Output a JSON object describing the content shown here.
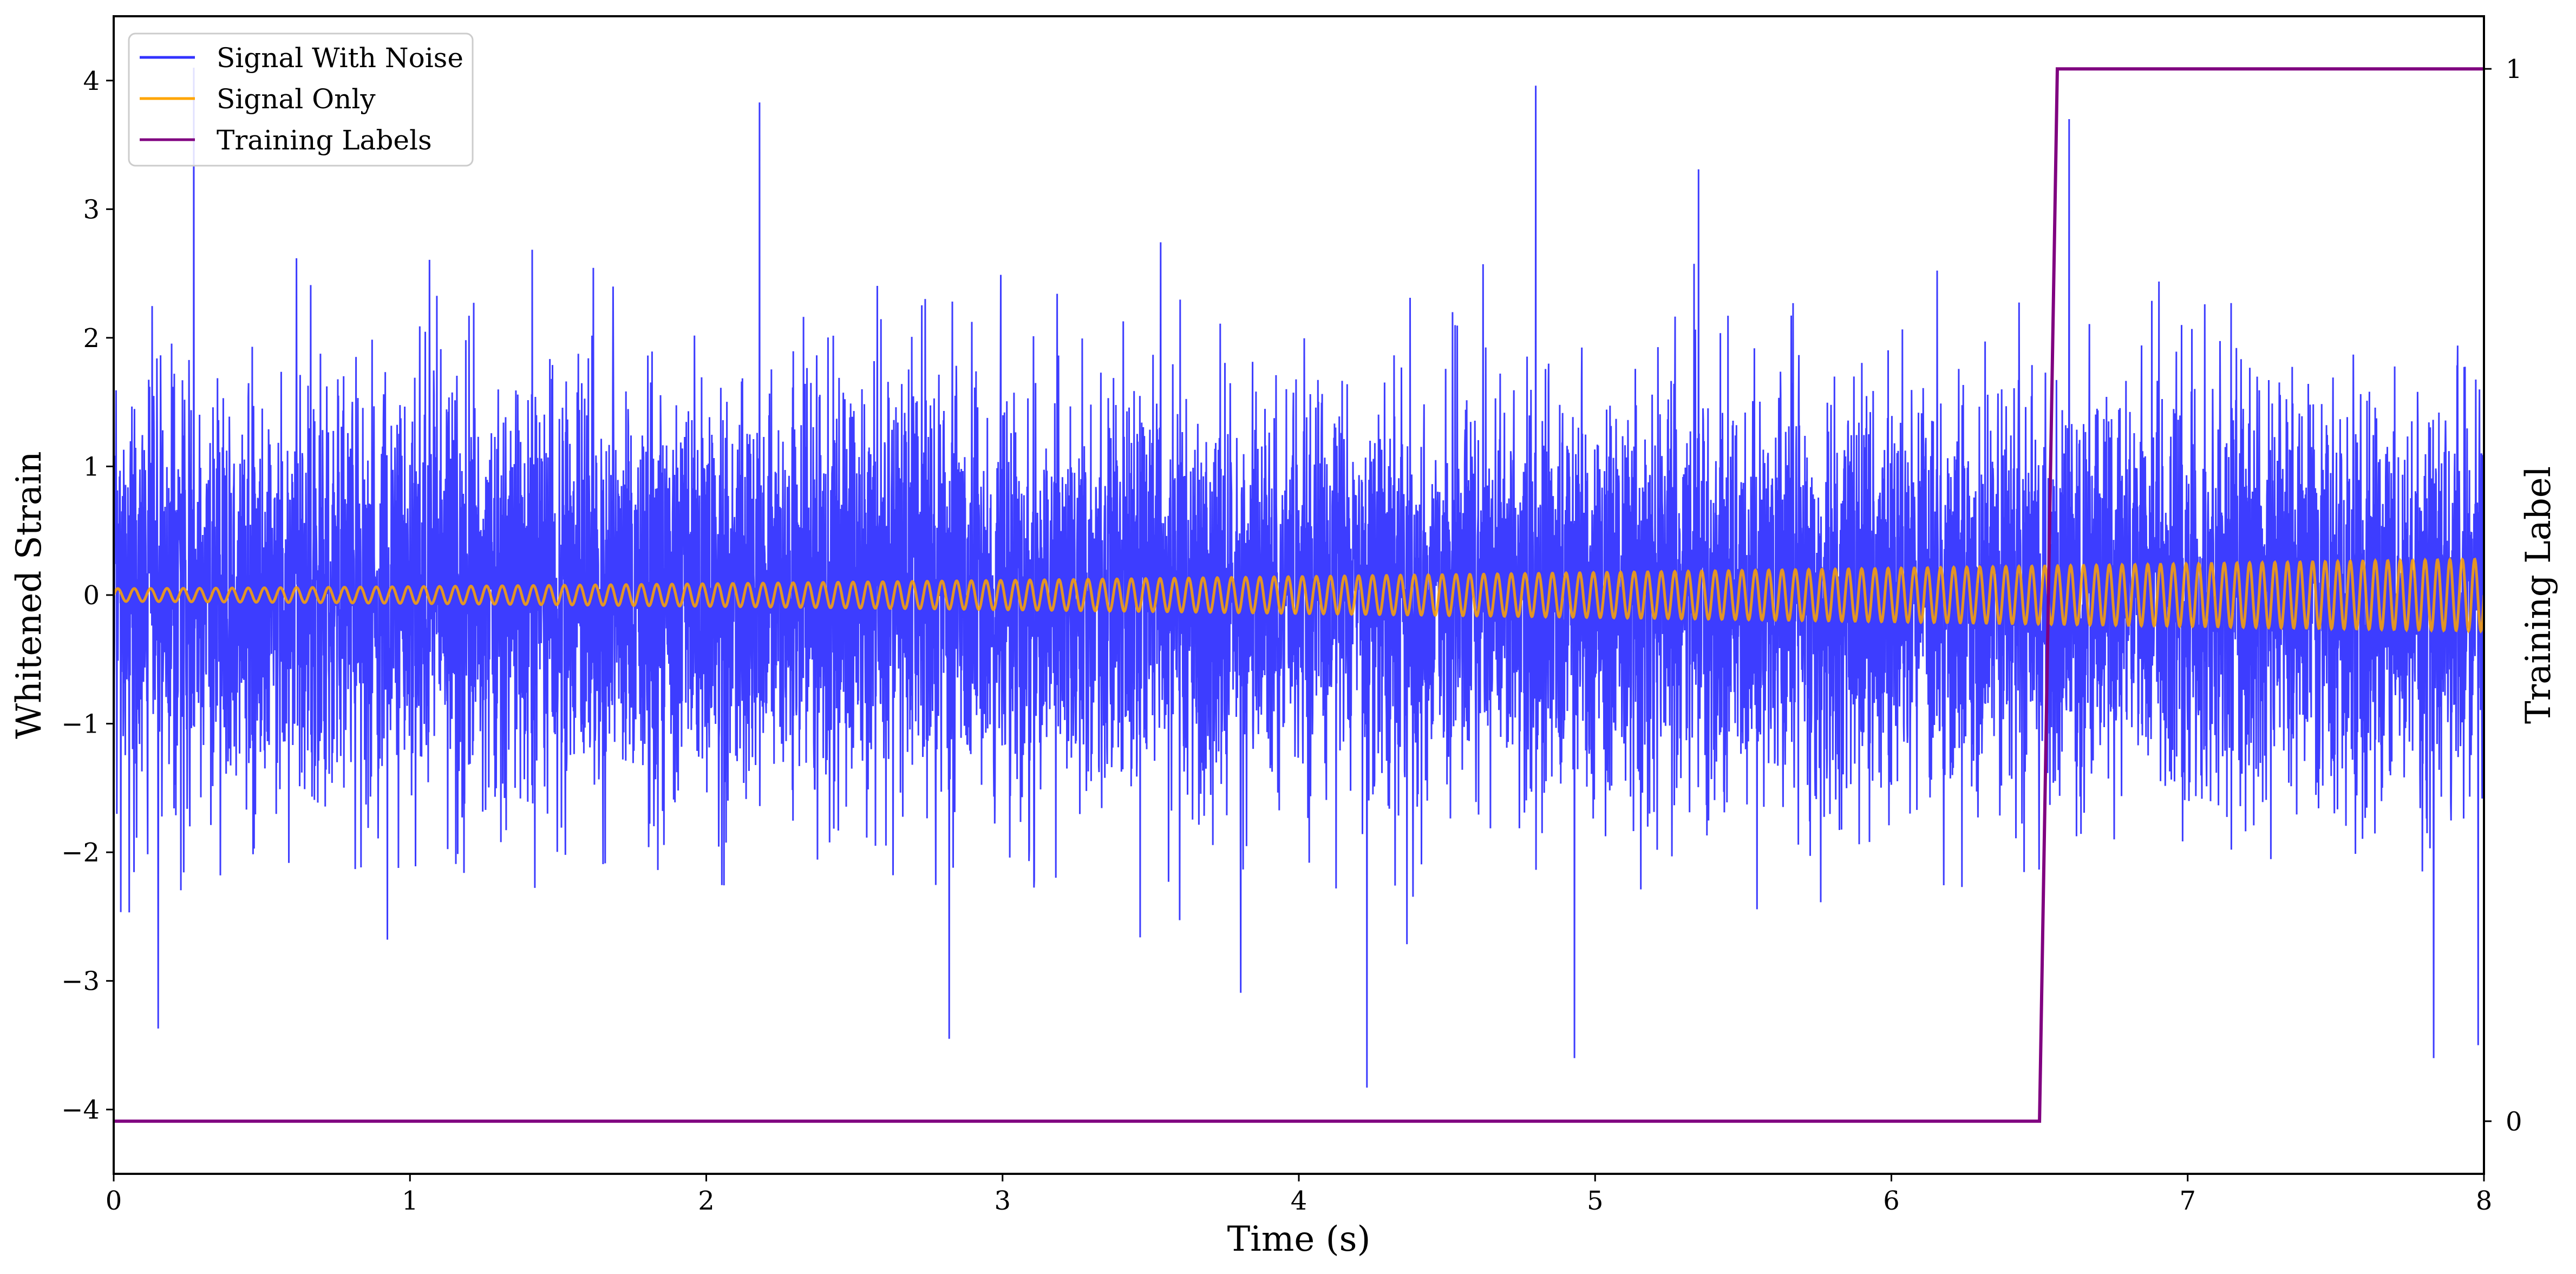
{
  "chart_data": {
    "type": "line",
    "title": "",
    "xlabel": "Time (s)",
    "ylabel": "Whitened Strain",
    "ylabel_right": "Training Label",
    "xlim": [
      0,
      8
    ],
    "ylim": [
      -4.5,
      4.5
    ],
    "ylim_right": [
      -0.05,
      1.05
    ],
    "x_ticks": [
      "0",
      "1",
      "2",
      "3",
      "4",
      "5",
      "6",
      "7",
      "8"
    ],
    "y_ticks": [
      "−4",
      "−3",
      "−2",
      "−1",
      "0",
      "1",
      "2",
      "3",
      "4"
    ],
    "y_ticks_right": [
      "0",
      "1"
    ],
    "grid": false,
    "legend_position": "top-left",
    "legend": [
      "Signal With Noise",
      "Signal Only",
      "Training Labels"
    ],
    "series": [
      {
        "name": "Signal With Noise",
        "color": "#3333ff",
        "axis": "left",
        "noise_std": 0.8,
        "extremes": [
          {
            "x": 0.27,
            "y": 4.1
          },
          {
            "x": 0.15,
            "y": -3.37
          },
          {
            "x": 2.18,
            "y": 3.83
          },
          {
            "x": 2.82,
            "y": -3.45
          },
          {
            "x": 4.23,
            "y": -3.83
          },
          {
            "x": 4.8,
            "y": 3.96
          },
          {
            "x": 4.93,
            "y": -3.6
          },
          {
            "x": 6.6,
            "y": 3.7
          },
          {
            "x": 7.83,
            "y": -3.6
          },
          {
            "x": 7.98,
            "y": -3.5
          }
        ]
      },
      {
        "name": "Signal Only",
        "color": "#ffa500",
        "axis": "left",
        "amplitude_start": 0.05,
        "amplitude_end": 0.28,
        "cycles_per_second_start": 18,
        "cycles_per_second_end": 24
      },
      {
        "name": "Training Labels",
        "color": "#800080",
        "axis": "right",
        "x": [
          0,
          6.5,
          6.56,
          8
        ],
        "values": [
          0,
          0,
          1,
          1
        ]
      }
    ]
  }
}
